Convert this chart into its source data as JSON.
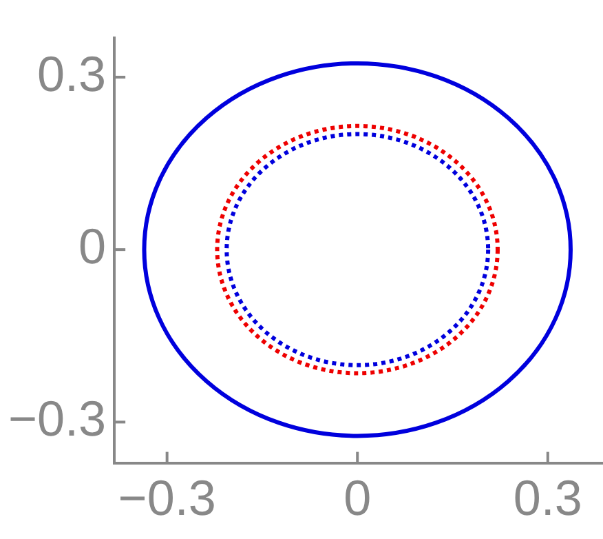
{
  "chart_data": {
    "type": "line",
    "xlim": [
      -0.383,
      0.387
    ],
    "ylim": [
      -0.371,
      0.368
    ],
    "xticks": [
      {
        "value": -0.3,
        "label": "−0.3"
      },
      0,
      0.3
    ],
    "yticks": [
      {
        "value": -0.3,
        "label": "−0.3"
      },
      0,
      0.3
    ]
  }
}
